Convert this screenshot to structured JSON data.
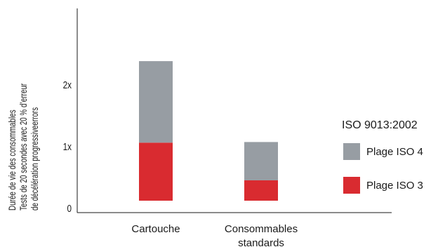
{
  "chart_data": {
    "type": "bar",
    "stacked": true,
    "categories": [
      "Cartouche",
      "Consommables\nstandards"
    ],
    "series": [
      {
        "name": "Plage ISO 3",
        "values": [
          0.94,
          0.33
        ],
        "color": "#d92b30"
      },
      {
        "name": "Plage ISO 4",
        "values": [
          1.32,
          0.62
        ],
        "color": "#979da3"
      }
    ],
    "ylabel": [
      "Durée de vie des consommables",
      "Tests de 20 secondes avec 20 % d’erreur",
      "de décélération progressiveerrors"
    ],
    "yticks": [
      "0",
      "1x",
      "2x"
    ],
    "ytick_values": [
      0,
      1,
      2
    ],
    "ylim": [
      -0.1,
      3.15
    ],
    "legend": {
      "title": "ISO 9013:2002",
      "placement": "right",
      "items": [
        {
          "label": "Plage ISO 4",
          "color": "#979da3"
        },
        {
          "label": "Plage ISO 3",
          "color": "#d92b30"
        }
      ]
    }
  }
}
